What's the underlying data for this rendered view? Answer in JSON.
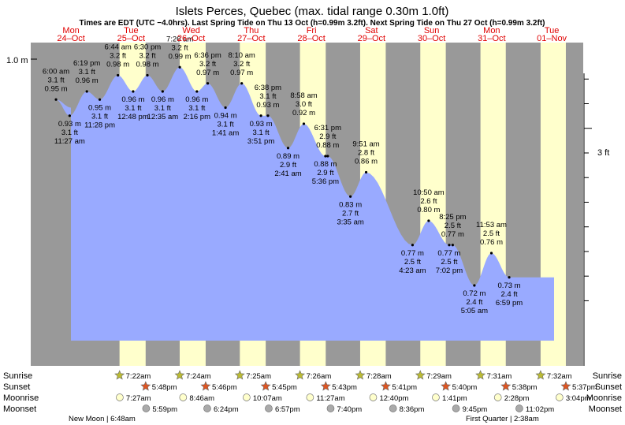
{
  "header": {
    "title": "Islets Perces, Quebec (max. tidal range 0.30m 1.0ft)",
    "subtitle": "Times are EDT (UTC −4.0hrs). Last Spring Tide on Thu 13 Oct (h=0.99m 3.2ft). Next Spring Tide on Thu 27 Oct (h=0.99m 3.2ft)"
  },
  "days": [
    {
      "dow": "Mon",
      "date": "24–Oct"
    },
    {
      "dow": "Tue",
      "date": "25–Oct"
    },
    {
      "dow": "Wed",
      "date": "26–Oct"
    },
    {
      "dow": "Thu",
      "date": "27–Oct"
    },
    {
      "dow": "Fri",
      "date": "28–Oct"
    },
    {
      "dow": "Sat",
      "date": "29–Oct"
    },
    {
      "dow": "Sun",
      "date": "30–Oct"
    },
    {
      "dow": "Mon",
      "date": "31–Oct"
    },
    {
      "dow": "Tue",
      "date": "01–Nov"
    }
  ],
  "axes": {
    "left_label": "1.0 m",
    "right_label": "3 ft",
    "left_label_value_m": 1.0,
    "right_label_value_ft": 3
  },
  "chart_data": {
    "type": "area",
    "x": "time (hours from 24-Oct 00:00 EDT)",
    "ylabel": "",
    "ylim_m": [
      0.63,
      1.03
    ],
    "day_start_hours": 0,
    "x_range_hours": [
      0,
      216
    ],
    "tides": [
      {
        "h": 6.0,
        "m": 0.95,
        "ft": "3.1 ft",
        "mt": "0.95 m",
        "time": "6:00 am",
        "type": "high"
      },
      {
        "h": 11.45,
        "m": 0.93,
        "ft": "3.1 ft",
        "mt": "0.93 m",
        "time": "11:27 am",
        "type": "low"
      },
      {
        "h": 18.317,
        "m": 0.96,
        "ft": "3.1 ft",
        "mt": "0.96 m",
        "time": "6:19 pm",
        "type": "high"
      },
      {
        "h": 23.467,
        "m": 0.95,
        "ft": "3.1 ft",
        "mt": "0.95 m",
        "time": "11:28 pm",
        "type": "low"
      },
      {
        "h": 30.733,
        "m": 0.98,
        "ft": "3.2 ft",
        "mt": "0.98 m",
        "time": "6:44 am",
        "type": "high"
      },
      {
        "h": 36.8,
        "m": 0.96,
        "ft": "3.1 ft",
        "mt": "0.96 m",
        "time": "12:48 pm",
        "type": "low"
      },
      {
        "h": 42.5,
        "m": 0.98,
        "ft": "3.2 ft",
        "mt": "0.98 m",
        "time": "6:30 pm",
        "type": "high"
      },
      {
        "h": 48.583,
        "m": 0.96,
        "ft": "3.1 ft",
        "mt": "0.96 m",
        "time": "12:35 am",
        "type": "low"
      },
      {
        "h": 55.433,
        "m": 0.99,
        "ft": "3.2 ft",
        "mt": "0.99 m",
        "time": "7:26 am",
        "type": "high"
      },
      {
        "h": 62.267,
        "m": 0.96,
        "ft": "3.1 ft",
        "mt": "0.96 m",
        "time": "2:16 pm",
        "type": "low"
      },
      {
        "h": 66.6,
        "m": 0.97,
        "ft": "3.2 ft",
        "mt": "0.97 m",
        "time": "6:36 pm",
        "type": "high"
      },
      {
        "h": 73.683,
        "m": 0.94,
        "ft": "3.1 ft",
        "mt": "0.94 m",
        "time": "1:41 am",
        "type": "low"
      },
      {
        "h": 80.167,
        "m": 0.97,
        "ft": "3.2 ft",
        "mt": "0.97 m",
        "time": "8:10 am",
        "type": "high"
      },
      {
        "h": 87.85,
        "m": 0.93,
        "ft": "3.1 ft",
        "mt": "0.93 m",
        "time": "3:51 pm",
        "type": "low"
      },
      {
        "h": 90.633,
        "m": 0.93,
        "ft": "3.1 ft",
        "mt": "0.93 m",
        "time": "6:38 pm",
        "type": "high"
      },
      {
        "h": 98.683,
        "m": 0.89,
        "ft": "2.9 ft",
        "mt": "0.89 m",
        "time": "2:41 am",
        "type": "low"
      },
      {
        "h": 104.967,
        "m": 0.92,
        "ft": "3.0 ft",
        "mt": "0.92 m",
        "time": "8:58 am",
        "type": "high"
      },
      {
        "h": 113.6,
        "m": 0.88,
        "ft": "2.9 ft",
        "mt": "0.88 m",
        "time": "5:36 pm",
        "type": "low"
      },
      {
        "h": 114.517,
        "m": 0.88,
        "ft": "2.9 ft",
        "mt": "0.88 m",
        "time": "6:31 pm",
        "type": "high"
      },
      {
        "h": 123.583,
        "m": 0.83,
        "ft": "2.7 ft",
        "mt": "0.83 m",
        "time": "3:35 am",
        "type": "low"
      },
      {
        "h": 129.85,
        "m": 0.86,
        "ft": "2.8 ft",
        "mt": "0.86 m",
        "time": "9:51 am",
        "type": "high"
      },
      {
        "h": 148.383,
        "m": 0.77,
        "ft": "2.5 ft",
        "mt": "0.77 m",
        "time": "4:23 am",
        "type": "low"
      },
      {
        "h": 154.833,
        "m": 0.8,
        "ft": "2.6 ft",
        "mt": "0.80 m",
        "time": "10:50 am",
        "type": "high"
      },
      {
        "h": 163.033,
        "m": 0.77,
        "ft": "2.5 ft",
        "mt": "0.77 m",
        "time": "7:02 pm",
        "type": "low"
      },
      {
        "h": 164.417,
        "m": 0.77,
        "ft": "2.5 ft",
        "mt": "0.77 m",
        "time": "8:25 pm",
        "type": "high"
      },
      {
        "h": 173.083,
        "m": 0.72,
        "ft": "2.4 ft",
        "mt": "0.72 m",
        "time": "5:05 am",
        "type": "low"
      },
      {
        "h": 179.883,
        "m": 0.76,
        "ft": "2.5 ft",
        "mt": "0.76 m",
        "time": "11:53 am",
        "type": "high"
      },
      {
        "h": 186.983,
        "m": 0.73,
        "ft": "2.4 ft",
        "mt": "0.73 m",
        "time": "6:59 pm",
        "type": "low"
      }
    ]
  },
  "sun_moon": {
    "row_labels": {
      "sunrise": "Sunrise",
      "sunset": "Sunset",
      "moonrise": "Moonrise",
      "moonset": "Moonset"
    },
    "sunrise": [
      {
        "h": 31.367,
        "t": "7:22am"
      },
      {
        "h": 55.4,
        "t": "7:24am"
      },
      {
        "h": 79.417,
        "t": "7:25am"
      },
      {
        "h": 103.433,
        "t": "7:26am"
      },
      {
        "h": 127.467,
        "t": "7:28am"
      },
      {
        "h": 151.483,
        "t": "7:29am"
      },
      {
        "h": 175.517,
        "t": "7:31am"
      },
      {
        "h": 199.533,
        "t": "7:32am"
      }
    ],
    "sunset": [
      {
        "h": 41.8,
        "t": "5:48pm"
      },
      {
        "h": 65.767,
        "t": "5:46pm"
      },
      {
        "h": 89.75,
        "t": "5:45pm"
      },
      {
        "h": 113.717,
        "t": "5:43pm"
      },
      {
        "h": 137.683,
        "t": "5:41pm"
      },
      {
        "h": 161.667,
        "t": "5:40pm"
      },
      {
        "h": 185.633,
        "t": "5:38pm"
      },
      {
        "h": 209.617,
        "t": "5:37pm"
      }
    ],
    "moonrise": [
      {
        "h": 31.45,
        "t": "7:27am"
      },
      {
        "h": 56.767,
        "t": "8:46am"
      },
      {
        "h": 82.117,
        "t": "10:07am"
      },
      {
        "h": 107.45,
        "t": "11:27am"
      },
      {
        "h": 132.667,
        "t": "12:40pm"
      },
      {
        "h": 157.683,
        "t": "1:41pm"
      },
      {
        "h": 182.467,
        "t": "2:28pm"
      },
      {
        "h": 207.067,
        "t": "3:04pm"
      }
    ],
    "moonset": [
      {
        "h": 41.983,
        "t": "5:59pm"
      },
      {
        "h": 66.4,
        "t": "6:24pm"
      },
      {
        "h": 90.95,
        "t": "6:57pm"
      },
      {
        "h": 115.667,
        "t": "7:40pm"
      },
      {
        "h": 140.6,
        "t": "8:36pm"
      },
      {
        "h": 165.75,
        "t": "9:45pm"
      },
      {
        "h": 191.033,
        "t": "11:02pm"
      }
    ],
    "moon_phases": [
      {
        "text": "New Moon | 6:48am"
      },
      {
        "text": "First Quarter | 2:38am"
      }
    ]
  },
  "colors": {
    "night": "#999999",
    "day": "#ffffcc",
    "water": "#99aaff",
    "day_text": "#e00000",
    "sunrise_star": "#bbbb33",
    "sunset_star": "#dd5522",
    "moonrise": "#ffffcc",
    "moonset": "#aaaaaa"
  }
}
